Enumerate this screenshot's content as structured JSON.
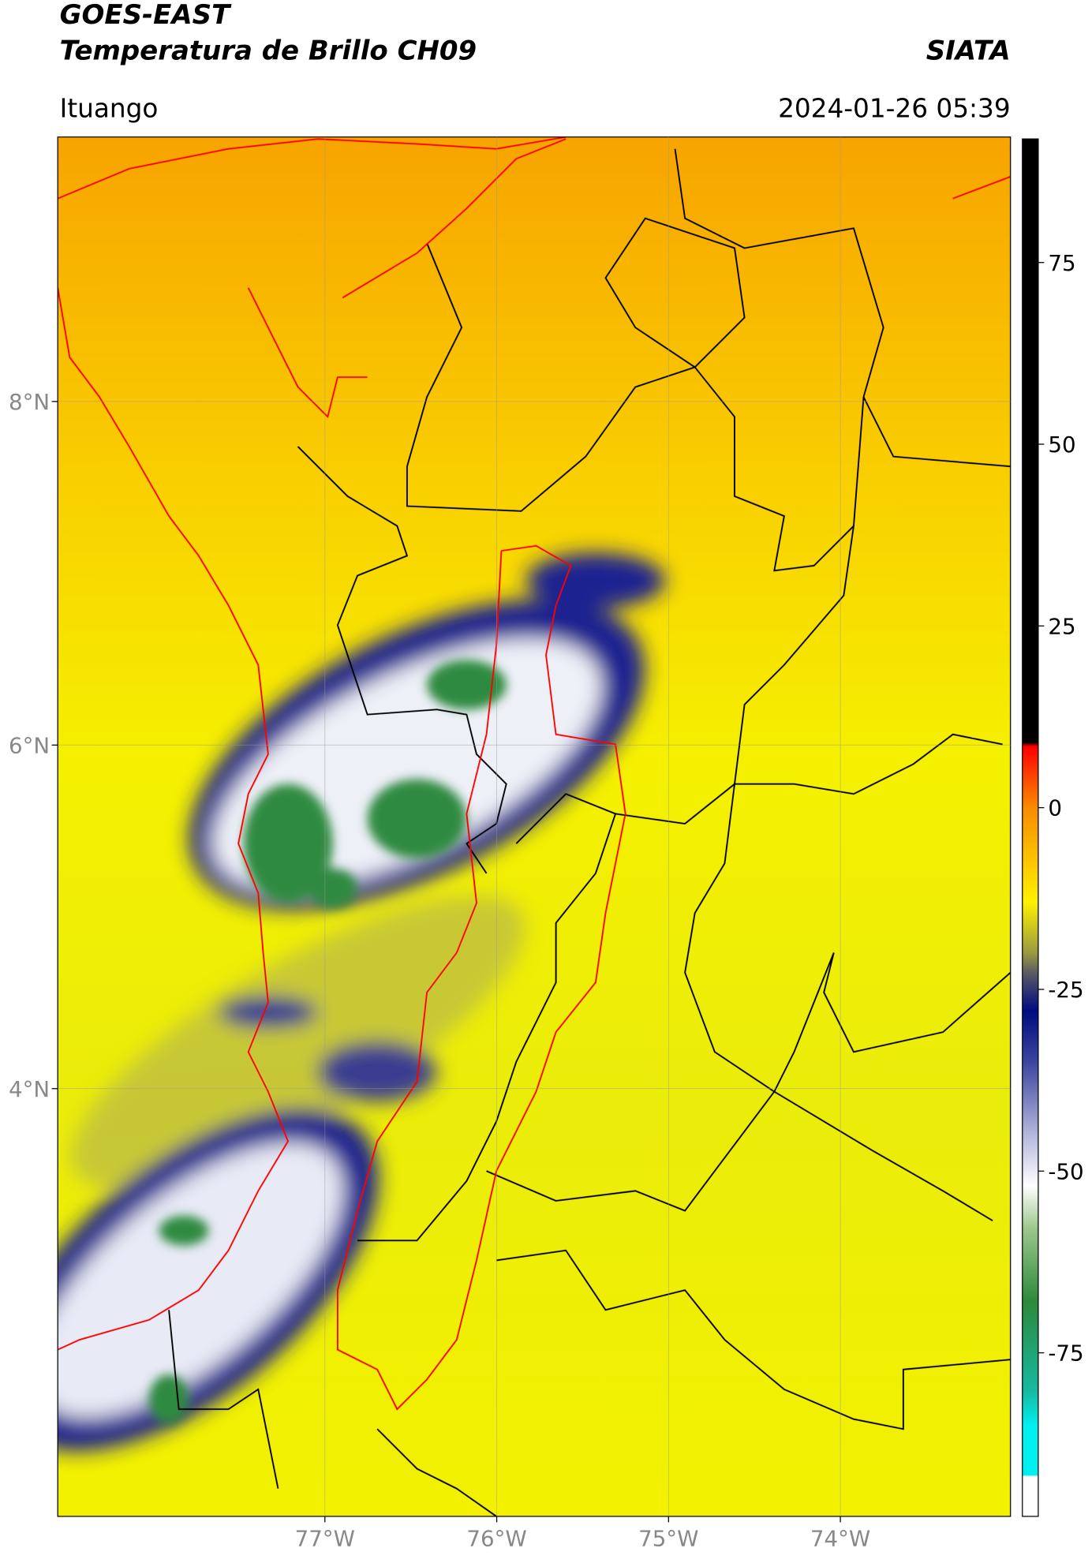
{
  "header": {
    "title": "GOES-EAST",
    "subtitle": "Temperatura de Brillo CH09",
    "brand": "SIATA",
    "location": "Ituango",
    "datetime": "2024-01-26 05:39"
  },
  "map": {
    "lon_range": [
      -78.555,
      -73.01
    ],
    "lat_range": [
      1.51,
      9.54
    ],
    "lon_ticks": [
      {
        "value": -77,
        "label": "77°W"
      },
      {
        "value": -76,
        "label": "76°W"
      },
      {
        "value": -75,
        "label": "75°W"
      },
      {
        "value": -74,
        "label": "74°W"
      }
    ],
    "lat_ticks": [
      {
        "value": 8,
        "label": "8°N"
      },
      {
        "value": 6,
        "label": "6°N"
      },
      {
        "value": 4,
        "label": "4°N"
      }
    ]
  },
  "colorbar": {
    "range": [
      -97.5,
      92
    ],
    "ticks": [
      75,
      50,
      25,
      0,
      -25,
      -50,
      -75
    ]
  }
}
